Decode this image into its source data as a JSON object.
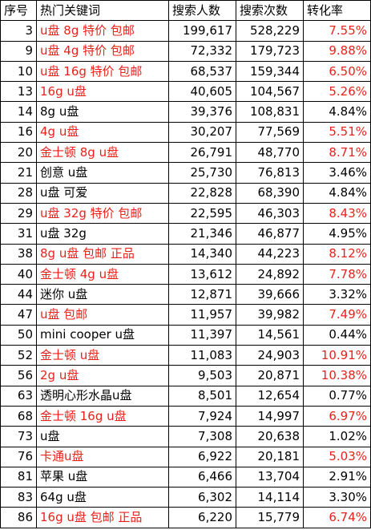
{
  "headers": [
    "序号",
    "热门关键词",
    "搜索人数",
    "搜索次数",
    "转化率"
  ],
  "highlight_color": "#e8221b",
  "rows": [
    {
      "idx": "3",
      "keyword": "u盘 8g 特价 包邮",
      "people": "199,617",
      "count": "528,229",
      "rate": "7.55%",
      "hl": true
    },
    {
      "idx": "9",
      "keyword": "u盘 4g 特价 包邮",
      "people": "72,332",
      "count": "179,723",
      "rate": "9.88%",
      "hl": true
    },
    {
      "idx": "10",
      "keyword": "u盘 16g 特价 包邮",
      "people": "68,537",
      "count": "159,344",
      "rate": "6.50%",
      "hl": true
    },
    {
      "idx": "13",
      "keyword": "16g u盘",
      "people": "40,605",
      "count": "104,567",
      "rate": "5.26%",
      "hl": true
    },
    {
      "idx": "14",
      "keyword": "8g u盘",
      "people": "39,376",
      "count": "108,831",
      "rate": "4.84%",
      "hl": false
    },
    {
      "idx": "16",
      "keyword": "4g u盘",
      "people": "30,207",
      "count": "77,569",
      "rate": "5.51%",
      "hl": true
    },
    {
      "idx": "20",
      "keyword": "金士顿 8g u盘",
      "people": "26,791",
      "count": "48,770",
      "rate": "8.71%",
      "hl": true
    },
    {
      "idx": "21",
      "keyword": "创意 u盘",
      "people": "25,730",
      "count": "76,813",
      "rate": "3.46%",
      "hl": false
    },
    {
      "idx": "28",
      "keyword": "u盘 可爱",
      "people": "22,828",
      "count": "68,390",
      "rate": "4.84%",
      "hl": false
    },
    {
      "idx": "29",
      "keyword": "u盘 32g 特价 包邮",
      "people": "22,595",
      "count": "46,303",
      "rate": "8.43%",
      "hl": true
    },
    {
      "idx": "31",
      "keyword": "u盘 32g",
      "people": "21,346",
      "count": "46,877",
      "rate": "4.95%",
      "hl": false
    },
    {
      "idx": "38",
      "keyword": "8g u盘 包邮 正品",
      "people": "14,340",
      "count": "44,223",
      "rate": "8.12%",
      "hl": true
    },
    {
      "idx": "40",
      "keyword": "金士顿 4g u盘",
      "people": "13,612",
      "count": "24,892",
      "rate": "7.78%",
      "hl": true
    },
    {
      "idx": "44",
      "keyword": "迷你 u盘",
      "people": "12,871",
      "count": "39,666",
      "rate": "3.32%",
      "hl": false
    },
    {
      "idx": "47",
      "keyword": "u盘 包邮",
      "people": "11,957",
      "count": "39,982",
      "rate": "7.49%",
      "hl": true
    },
    {
      "idx": "50",
      "keyword": "mini cooper u盘",
      "people": "11,397",
      "count": "14,561",
      "rate": "0.44%",
      "hl": false
    },
    {
      "idx": "52",
      "keyword": "金士顿 u盘",
      "people": "11,083",
      "count": "24,903",
      "rate": "10.91%",
      "hl": true
    },
    {
      "idx": "56",
      "keyword": "2g u盘",
      "people": "9,503",
      "count": "20,871",
      "rate": "10.38%",
      "hl": true
    },
    {
      "idx": "63",
      "keyword": "透明心形水晶u盘",
      "people": "8,501",
      "count": "12,654",
      "rate": "0.77%",
      "hl": false
    },
    {
      "idx": "68",
      "keyword": "金士顿 16g u盘",
      "people": "7,924",
      "count": "14,997",
      "rate": "6.97%",
      "hl": true
    },
    {
      "idx": "73",
      "keyword": "u盘",
      "people": "7,308",
      "count": "20,638",
      "rate": "1.02%",
      "hl": false
    },
    {
      "idx": "76",
      "keyword": "卡通u盘",
      "people": "6,922",
      "count": "20,181",
      "rate": "5.03%",
      "hl": true
    },
    {
      "idx": "81",
      "keyword": "苹果 u盘",
      "people": "6,466",
      "count": "13,704",
      "rate": "2.91%",
      "hl": false
    },
    {
      "idx": "83",
      "keyword": "64g u盘",
      "people": "6,302",
      "count": "14,114",
      "rate": "3.30%",
      "hl": false
    },
    {
      "idx": "86",
      "keyword": "16g u盘 包邮 正品",
      "people": "6,220",
      "count": "15,779",
      "rate": "6.74%",
      "hl": true
    }
  ]
}
